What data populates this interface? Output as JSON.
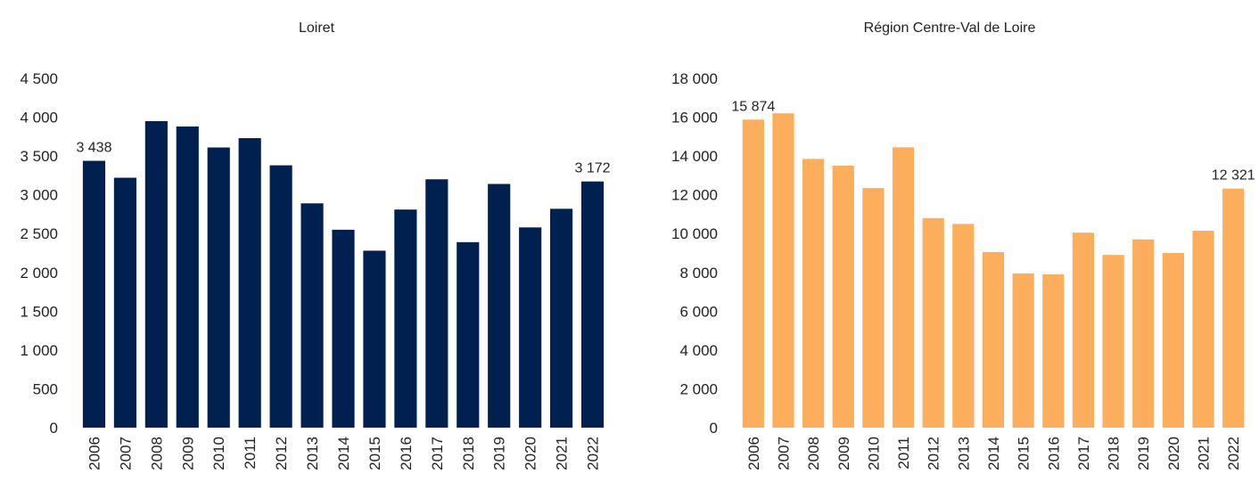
{
  "chart_data": [
    {
      "type": "bar",
      "title": "Loiret",
      "categories": [
        "2006",
        "2007",
        "2008",
        "2009",
        "2010",
        "2011",
        "2012",
        "2013",
        "2014",
        "2015",
        "2016",
        "2017",
        "2018",
        "2019",
        "2020",
        "2021",
        "2022"
      ],
      "values": [
        3438,
        3220,
        3950,
        3880,
        3610,
        3730,
        3380,
        2890,
        2550,
        2280,
        2810,
        3200,
        2390,
        3140,
        2580,
        2820,
        3172
      ],
      "value_labels": [
        "3 438",
        null,
        null,
        null,
        null,
        null,
        null,
        null,
        null,
        null,
        null,
        null,
        null,
        null,
        null,
        null,
        "3 172"
      ],
      "color": "#00214f",
      "ylim": [
        0,
        4500
      ],
      "yticks": [
        0,
        500,
        {
          "value": 1000,
          "label": "1 000"
        },
        {
          "value": 1500,
          "label": "1 500"
        },
        {
          "value": 2000,
          "label": "2 000"
        },
        {
          "value": 2500,
          "label": "2 500"
        },
        {
          "value": 3000,
          "label": "3 000"
        },
        {
          "value": 3500,
          "label": "3 500"
        },
        {
          "value": 4000,
          "label": "4 000"
        },
        {
          "value": 4500,
          "label": "4 500"
        }
      ],
      "grid": false
    },
    {
      "type": "bar",
      "title": "Région Centre-Val de Loire",
      "categories": [
        "2006",
        "2007",
        "2008",
        "2009",
        "2010",
        "2011",
        "2012",
        "2013",
        "2014",
        "2015",
        "2016",
        "2017",
        "2018",
        "2019",
        "2020",
        "2021",
        "2022"
      ],
      "values": [
        15874,
        16200,
        13850,
        13500,
        12350,
        14450,
        10800,
        10500,
        9050,
        7950,
        7900,
        10050,
        8900,
        9700,
        9000,
        10150,
        12321
      ],
      "value_labels": [
        "15 874",
        null,
        null,
        null,
        null,
        null,
        null,
        null,
        null,
        null,
        null,
        null,
        null,
        null,
        null,
        null,
        "12 321"
      ],
      "color": "#fdae5c",
      "ylim": [
        0,
        18000
      ],
      "yticks": [
        0,
        {
          "value": 2000,
          "label": "2 000"
        },
        {
          "value": 4000,
          "label": "4 000"
        },
        {
          "value": 6000,
          "label": "6 000"
        },
        {
          "value": 8000,
          "label": "8 000"
        },
        {
          "value": 10000,
          "label": "10 000"
        },
        {
          "value": 12000,
          "label": "12 000"
        },
        {
          "value": 14000,
          "label": "14 000"
        },
        {
          "value": 16000,
          "label": "16 000"
        },
        {
          "value": 18000,
          "label": "18 000"
        }
      ],
      "grid": false
    }
  ]
}
